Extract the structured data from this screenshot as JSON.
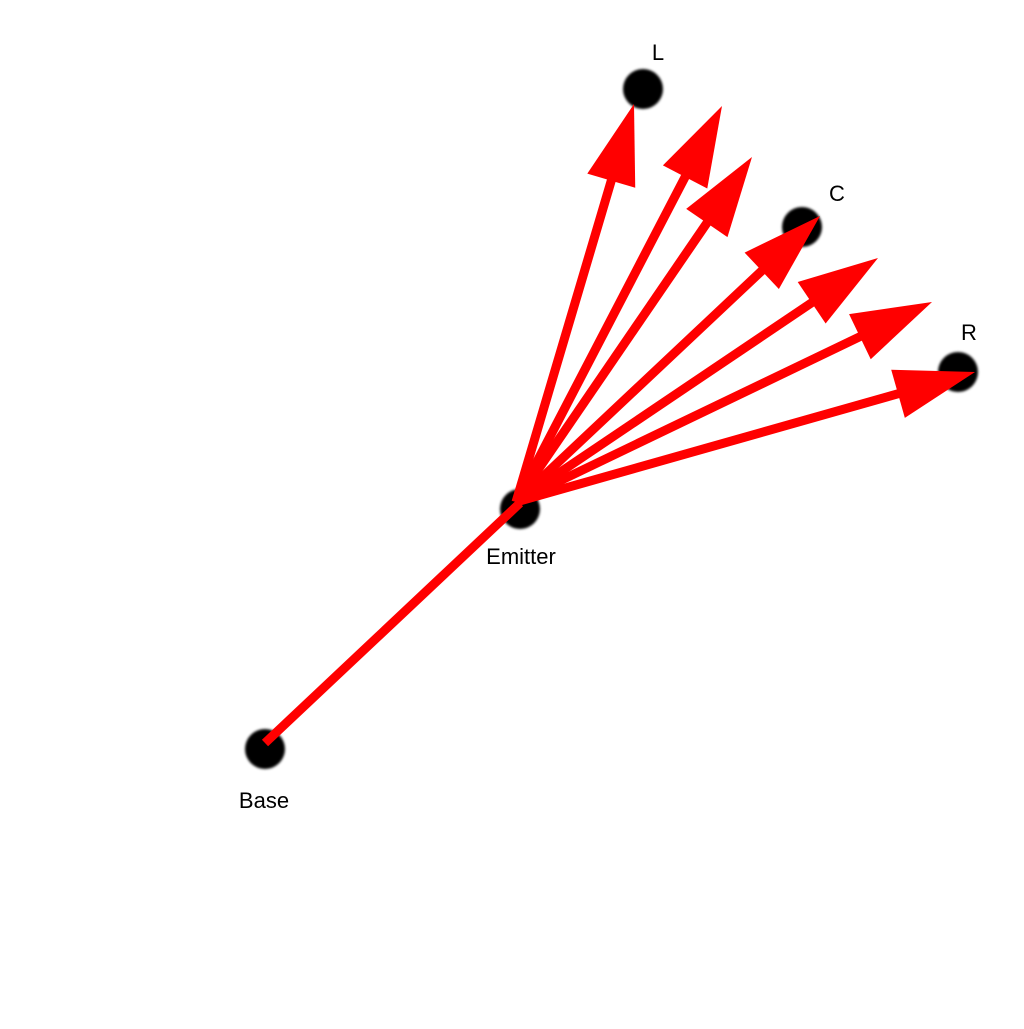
{
  "nodes": {
    "left": {
      "label": "L"
    },
    "center": {
      "label": "C"
    },
    "right": {
      "label": "R"
    },
    "emitter": {
      "label": "Emitter"
    },
    "base": {
      "label": "Base"
    }
  },
  "colors": {
    "arrow": "#ff0000",
    "node": "#000000"
  },
  "arrow_count": 7
}
